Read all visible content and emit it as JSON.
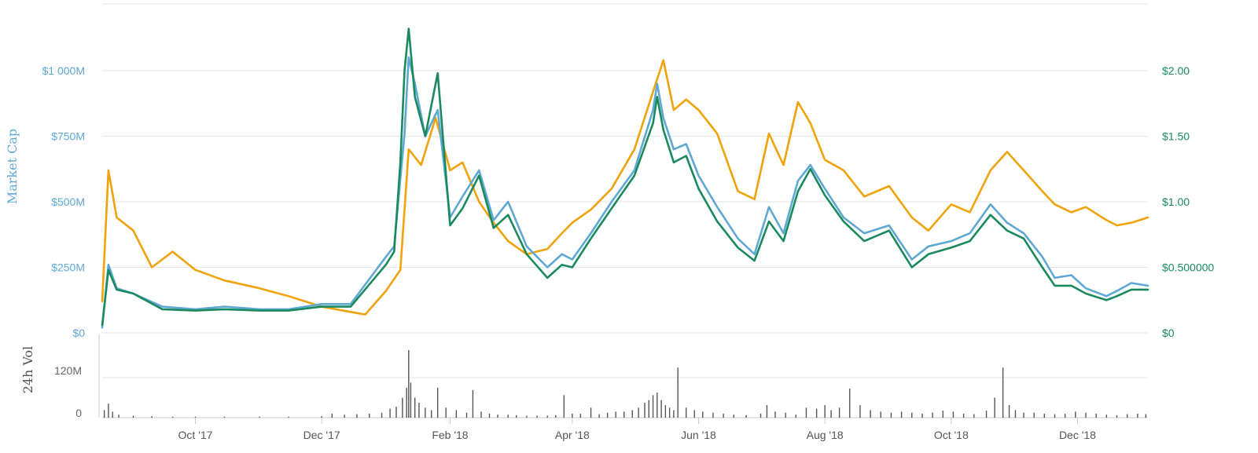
{
  "chart_data": [
    {
      "type": "line",
      "title": "",
      "ylabel": "Market Cap",
      "ylim_left": [
        0,
        1000000000
      ],
      "left_ticks": [
        "$0",
        "$250M",
        "$500M",
        "$750M",
        "$1 000M"
      ],
      "right_ticks": [
        "$0",
        "$0.500000",
        "$1.00",
        "$1.50",
        "$2.00"
      ],
      "ylim_right": [
        0,
        2.0
      ],
      "grid": true,
      "x_ticks": [
        "Oct '17",
        "Dec '17",
        "Feb '18",
        "Apr '18",
        "Jun '18",
        "Aug '18",
        "Oct '18",
        "Dec '18"
      ],
      "colors": {
        "market_cap": "#5fa8d3",
        "price_usd": "#1a8a5e",
        "price_btc": "#f0a30a"
      },
      "series": [
        {
          "key": "market_cap",
          "axis": "left",
          "x": [
            "2017-08-17",
            "2017-08-20",
            "2017-08-24",
            "2017-09-01",
            "2017-09-15",
            "2017-10-01",
            "2017-10-15",
            "2017-11-01",
            "2017-11-15",
            "2017-12-01",
            "2017-12-15",
            "2018-01-01",
            "2018-01-05",
            "2018-01-10",
            "2018-01-12",
            "2018-01-15",
            "2018-01-20",
            "2018-01-26",
            "2018-02-01",
            "2018-02-07",
            "2018-02-15",
            "2018-02-22",
            "2018-03-01",
            "2018-03-10",
            "2018-03-20",
            "2018-03-27",
            "2018-04-01",
            "2018-04-10",
            "2018-04-20",
            "2018-05-01",
            "2018-05-10",
            "2018-05-12",
            "2018-05-15",
            "2018-05-20",
            "2018-05-26",
            "2018-06-01",
            "2018-06-10",
            "2018-06-20",
            "2018-06-28",
            "2018-07-05",
            "2018-07-12",
            "2018-07-19",
            "2018-07-25",
            "2018-08-01",
            "2018-08-10",
            "2018-08-20",
            "2018-09-01",
            "2018-09-12",
            "2018-09-20",
            "2018-10-01",
            "2018-10-10",
            "2018-10-20",
            "2018-10-28",
            "2018-11-05",
            "2018-11-14",
            "2018-11-20",
            "2018-11-28",
            "2018-12-05",
            "2018-12-15",
            "2018-12-20",
            "2018-12-27",
            "2019-01-04"
          ],
          "values": [
            20000000,
            260000000,
            170000000,
            150000000,
            100000000,
            90000000,
            100000000,
            90000000,
            90000000,
            110000000,
            110000000,
            290000000,
            330000000,
            760000000,
            1050000000,
            950000000,
            750000000,
            850000000,
            440000000,
            520000000,
            620000000,
            430000000,
            500000000,
            330000000,
            250000000,
            300000000,
            280000000,
            380000000,
            500000000,
            620000000,
            850000000,
            950000000,
            820000000,
            700000000,
            720000000,
            600000000,
            480000000,
            360000000,
            300000000,
            480000000,
            380000000,
            580000000,
            640000000,
            550000000,
            440000000,
            380000000,
            410000000,
            280000000,
            330000000,
            350000000,
            380000000,
            490000000,
            420000000,
            380000000,
            290000000,
            210000000,
            220000000,
            170000000,
            140000000,
            160000000,
            190000000,
            180000000
          ]
        },
        {
          "key": "price_usd",
          "axis": "right",
          "x": [
            "2017-08-17",
            "2017-08-20",
            "2017-08-24",
            "2017-09-01",
            "2017-09-15",
            "2017-10-01",
            "2017-10-15",
            "2017-11-01",
            "2017-11-15",
            "2017-12-01",
            "2017-12-15",
            "2018-01-01",
            "2018-01-05",
            "2018-01-08",
            "2018-01-10",
            "2018-01-12",
            "2018-01-15",
            "2018-01-20",
            "2018-01-26",
            "2018-02-01",
            "2018-02-07",
            "2018-02-15",
            "2018-02-22",
            "2018-03-01",
            "2018-03-10",
            "2018-03-20",
            "2018-03-27",
            "2018-04-01",
            "2018-04-10",
            "2018-04-20",
            "2018-05-01",
            "2018-05-10",
            "2018-05-12",
            "2018-05-15",
            "2018-05-20",
            "2018-05-26",
            "2018-06-01",
            "2018-06-10",
            "2018-06-20",
            "2018-06-28",
            "2018-07-05",
            "2018-07-12",
            "2018-07-19",
            "2018-07-25",
            "2018-08-01",
            "2018-08-10",
            "2018-08-20",
            "2018-09-01",
            "2018-09-12",
            "2018-09-20",
            "2018-10-01",
            "2018-10-10",
            "2018-10-20",
            "2018-10-28",
            "2018-11-05",
            "2018-11-14",
            "2018-11-20",
            "2018-11-28",
            "2018-12-05",
            "2018-12-15",
            "2018-12-20",
            "2018-12-27",
            "2019-01-04"
          ],
          "values": [
            0.06,
            0.48,
            0.33,
            0.3,
            0.18,
            0.17,
            0.18,
            0.17,
            0.17,
            0.2,
            0.2,
            0.52,
            0.62,
            1.3,
            2.0,
            2.32,
            1.8,
            1.5,
            1.98,
            0.82,
            0.95,
            1.2,
            0.8,
            0.9,
            0.6,
            0.42,
            0.52,
            0.5,
            0.72,
            0.95,
            1.2,
            1.6,
            1.8,
            1.55,
            1.3,
            1.35,
            1.1,
            0.85,
            0.65,
            0.55,
            0.85,
            0.7,
            1.08,
            1.25,
            1.05,
            0.85,
            0.7,
            0.78,
            0.5,
            0.6,
            0.65,
            0.7,
            0.9,
            0.78,
            0.72,
            0.5,
            0.36,
            0.36,
            0.3,
            0.25,
            0.28,
            0.33,
            0.33
          ]
        },
        {
          "key": "price_btc",
          "axis": "left",
          "x": [
            "2017-08-17",
            "2017-08-20",
            "2017-08-24",
            "2017-09-01",
            "2017-09-10",
            "2017-09-20",
            "2017-10-01",
            "2017-10-15",
            "2017-11-01",
            "2017-11-15",
            "2017-12-01",
            "2017-12-15",
            "2017-12-22",
            "2018-01-01",
            "2018-01-08",
            "2018-01-12",
            "2018-01-18",
            "2018-01-25",
            "2018-02-01",
            "2018-02-07",
            "2018-02-15",
            "2018-02-22",
            "2018-03-01",
            "2018-03-10",
            "2018-03-20",
            "2018-03-27",
            "2018-04-01",
            "2018-04-10",
            "2018-04-20",
            "2018-05-01",
            "2018-05-10",
            "2018-05-15",
            "2018-05-20",
            "2018-05-26",
            "2018-06-01",
            "2018-06-10",
            "2018-06-20",
            "2018-06-28",
            "2018-07-05",
            "2018-07-12",
            "2018-07-19",
            "2018-07-25",
            "2018-08-01",
            "2018-08-10",
            "2018-08-20",
            "2018-09-01",
            "2018-09-12",
            "2018-09-20",
            "2018-10-01",
            "2018-10-10",
            "2018-10-20",
            "2018-10-28",
            "2018-11-05",
            "2018-11-14",
            "2018-11-20",
            "2018-11-28",
            "2018-12-05",
            "2018-12-15",
            "2018-12-20",
            "2018-12-27",
            "2019-01-04"
          ],
          "values": [
            120000000,
            620000000,
            440000000,
            390000000,
            250000000,
            310000000,
            240000000,
            200000000,
            170000000,
            140000000,
            100000000,
            80000000,
            70000000,
            160000000,
            240000000,
            700000000,
            640000000,
            820000000,
            620000000,
            650000000,
            500000000,
            420000000,
            350000000,
            300000000,
            320000000,
            380000000,
            420000000,
            470000000,
            550000000,
            700000000,
            920000000,
            1040000000,
            850000000,
            890000000,
            850000000,
            760000000,
            540000000,
            510000000,
            760000000,
            640000000,
            880000000,
            800000000,
            660000000,
            620000000,
            520000000,
            560000000,
            440000000,
            390000000,
            490000000,
            460000000,
            620000000,
            690000000,
            620000000,
            540000000,
            490000000,
            460000000,
            480000000,
            430000000,
            410000000,
            420000000,
            440000000
          ]
        }
      ]
    },
    {
      "type": "bar",
      "title": "",
      "ylabel": "24h Vol",
      "ylim": [
        0,
        160000000
      ],
      "y_ticks": [
        "0",
        "120M"
      ],
      "grid": true,
      "color": "#555555",
      "x": [
        "2017-08-18",
        "2017-08-20",
        "2017-08-22",
        "2017-08-25",
        "2017-09-01",
        "2017-09-10",
        "2017-09-20",
        "2017-10-01",
        "2017-10-15",
        "2017-11-01",
        "2017-11-15",
        "2017-12-01",
        "2017-12-06",
        "2017-12-12",
        "2017-12-18",
        "2017-12-24",
        "2017-12-30",
        "2018-01-03",
        "2018-01-06",
        "2018-01-09",
        "2018-01-11",
        "2018-01-12",
        "2018-01-13",
        "2018-01-15",
        "2018-01-17",
        "2018-01-20",
        "2018-01-23",
        "2018-01-26",
        "2018-01-30",
        "2018-02-04",
        "2018-02-09",
        "2018-02-12",
        "2018-02-16",
        "2018-02-20",
        "2018-02-24",
        "2018-03-01",
        "2018-03-05",
        "2018-03-10",
        "2018-03-15",
        "2018-03-20",
        "2018-03-24",
        "2018-03-28",
        "2018-04-01",
        "2018-04-05",
        "2018-04-10",
        "2018-04-14",
        "2018-04-18",
        "2018-04-22",
        "2018-04-26",
        "2018-04-30",
        "2018-05-03",
        "2018-05-06",
        "2018-05-08",
        "2018-05-10",
        "2018-05-12",
        "2018-05-14",
        "2018-05-16",
        "2018-05-18",
        "2018-05-20",
        "2018-05-22",
        "2018-05-26",
        "2018-05-30",
        "2018-06-03",
        "2018-06-08",
        "2018-06-13",
        "2018-06-18",
        "2018-06-24",
        "2018-07-01",
        "2018-07-04",
        "2018-07-08",
        "2018-07-13",
        "2018-07-18",
        "2018-07-23",
        "2018-07-28",
        "2018-08-01",
        "2018-08-04",
        "2018-08-08",
        "2018-08-13",
        "2018-08-18",
        "2018-08-23",
        "2018-08-28",
        "2018-09-02",
        "2018-09-07",
        "2018-09-12",
        "2018-09-17",
        "2018-09-22",
        "2018-09-27",
        "2018-10-02",
        "2018-10-07",
        "2018-10-12",
        "2018-10-18",
        "2018-10-22",
        "2018-10-26",
        "2018-10-29",
        "2018-11-01",
        "2018-11-05",
        "2018-11-10",
        "2018-11-15",
        "2018-11-20",
        "2018-11-25",
        "2018-11-30",
        "2018-12-05",
        "2018-12-10",
        "2018-12-15",
        "2018-12-20",
        "2018-12-25",
        "2018-12-30",
        "2019-01-03"
      ],
      "values": [
        15000000,
        28000000,
        12000000,
        6000000,
        4000000,
        3000000,
        2000000,
        2000000,
        2000000,
        2000000,
        2000000,
        3000000,
        8000000,
        6000000,
        7000000,
        8000000,
        10000000,
        18000000,
        22000000,
        40000000,
        60000000,
        135000000,
        70000000,
        40000000,
        30000000,
        20000000,
        15000000,
        60000000,
        20000000,
        15000000,
        10000000,
        55000000,
        12000000,
        8000000,
        6000000,
        6000000,
        5000000,
        4000000,
        4000000,
        4000000,
        5000000,
        45000000,
        8000000,
        8000000,
        20000000,
        7000000,
        10000000,
        12000000,
        12000000,
        15000000,
        20000000,
        30000000,
        35000000,
        45000000,
        50000000,
        35000000,
        25000000,
        20000000,
        15000000,
        100000000,
        20000000,
        15000000,
        12000000,
        10000000,
        8000000,
        6000000,
        5000000,
        8000000,
        25000000,
        12000000,
        10000000,
        6000000,
        20000000,
        18000000,
        25000000,
        15000000,
        20000000,
        58000000,
        25000000,
        15000000,
        12000000,
        10000000,
        12000000,
        10000000,
        8000000,
        10000000,
        14000000,
        12000000,
        8000000,
        7000000,
        14000000,
        40000000,
        100000000,
        25000000,
        15000000,
        10000000,
        10000000,
        8000000,
        7000000,
        8000000,
        12000000,
        10000000,
        8000000,
        6000000,
        5000000,
        7000000,
        8000000,
        7000000
      ]
    }
  ],
  "labels": {
    "market_cap_title": "Market Cap",
    "vol_title": "24h Vol"
  }
}
